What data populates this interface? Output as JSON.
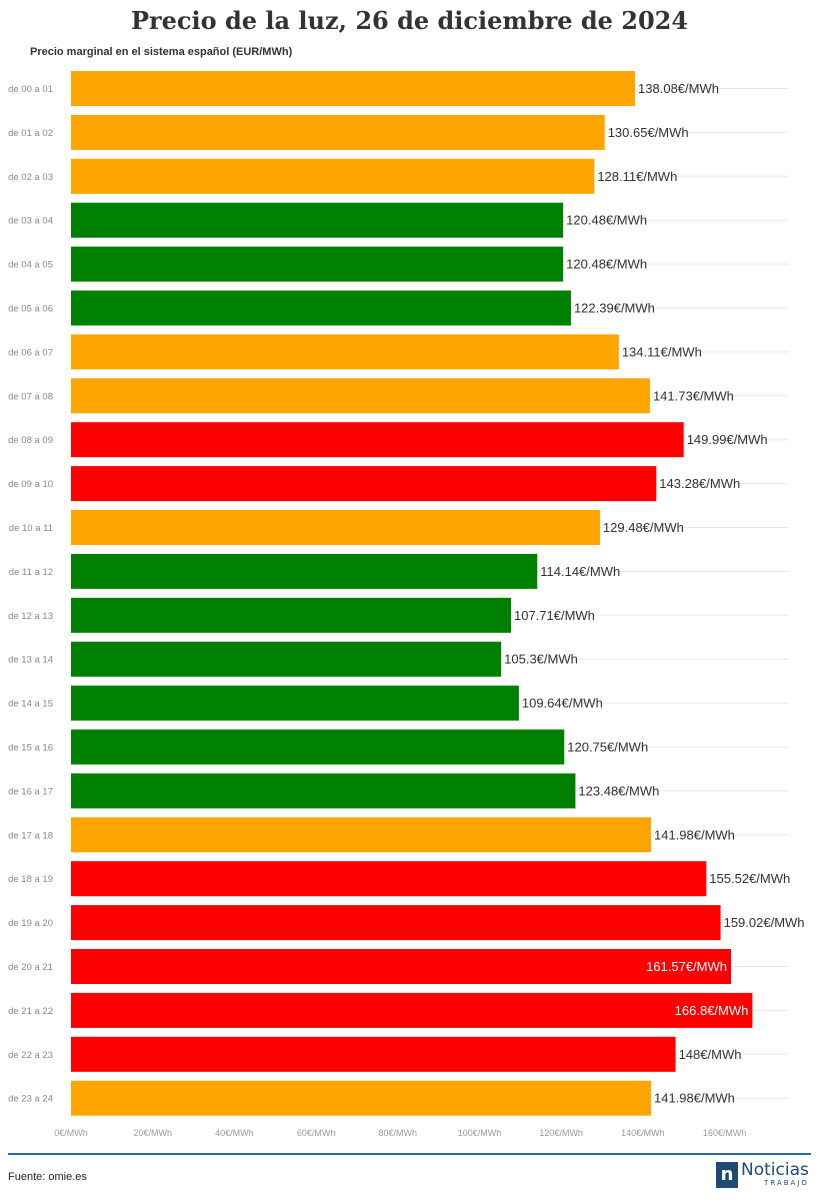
{
  "chart_data": {
    "type": "bar",
    "orientation": "horizontal",
    "title": "Precio de la luz, 26 de diciembre de 2024",
    "subtitle": "Precio marginal en el sistema español (EUR/MWh)",
    "categories": [
      "de 00 a 01",
      "de 01 a 02",
      "de 02 a 03",
      "de 03 a 04",
      "de 04 a 05",
      "de 05 a 06",
      "de 06 a 07",
      "de 07 a 08",
      "de 08 a 09",
      "de 09 a 10",
      "de 10 a 11",
      "de 11 a 12",
      "de 12 a 13",
      "de 13 a 14",
      "de 14 a 15",
      "de 15 a 16",
      "de 16 a 17",
      "de 17 a 18",
      "de 18 a 19",
      "de 19 a 20",
      "de 20 a 21",
      "de 21 a 22",
      "de 22 a 23",
      "de 23 a 24"
    ],
    "values": [
      138.08,
      130.65,
      128.11,
      120.48,
      120.48,
      122.39,
      134.11,
      141.73,
      149.99,
      143.28,
      129.48,
      114.14,
      107.71,
      105.3,
      109.64,
      120.75,
      123.48,
      141.98,
      155.52,
      159.02,
      161.57,
      166.8,
      148,
      141.98
    ],
    "labels": [
      "138.08€/MWh",
      "130.65€/MWh",
      "128.11€/MWh",
      "120.48€/MWh",
      "120.48€/MWh",
      "122.39€/MWh",
      "134.11€/MWh",
      "141.73€/MWh",
      "149.99€/MWh",
      "143.28€/MWh",
      "129.48€/MWh",
      "114.14€/MWh",
      "107.71€/MWh",
      "105.3€/MWh",
      "109.64€/MWh",
      "120.75€/MWh",
      "123.48€/MWh",
      "141.98€/MWh",
      "155.52€/MWh",
      "159.02€/MWh",
      "161.57€/MWh",
      "166.8€/MWh",
      "148€/MWh",
      "141.98€/MWh"
    ],
    "levels": [
      "mid",
      "mid",
      "mid",
      "low",
      "low",
      "low",
      "mid",
      "mid",
      "high",
      "high",
      "mid",
      "low",
      "low",
      "low",
      "low",
      "low",
      "low",
      "mid",
      "high",
      "high",
      "high",
      "high",
      "high",
      "mid"
    ],
    "level_colors": {
      "low": "#008000",
      "mid": "#ffa500",
      "high": "#ff0000"
    },
    "x_ticks": [
      0,
      20,
      40,
      60,
      80,
      100,
      120,
      140,
      160
    ],
    "x_tick_labels": [
      "0€/MWh",
      "20€/MWh",
      "40€/MWh",
      "60€/MWh",
      "80€/MWh",
      "100€/MWh",
      "120€/MWh",
      "140€/MWh",
      "160€/MWh"
    ],
    "xlim": [
      0,
      176
    ],
    "grid": true
  },
  "footer": {
    "source": "Fuente: omie.es",
    "logo_mark": "n",
    "logo_main": "Noticias",
    "logo_sub": "TRABAJO"
  }
}
